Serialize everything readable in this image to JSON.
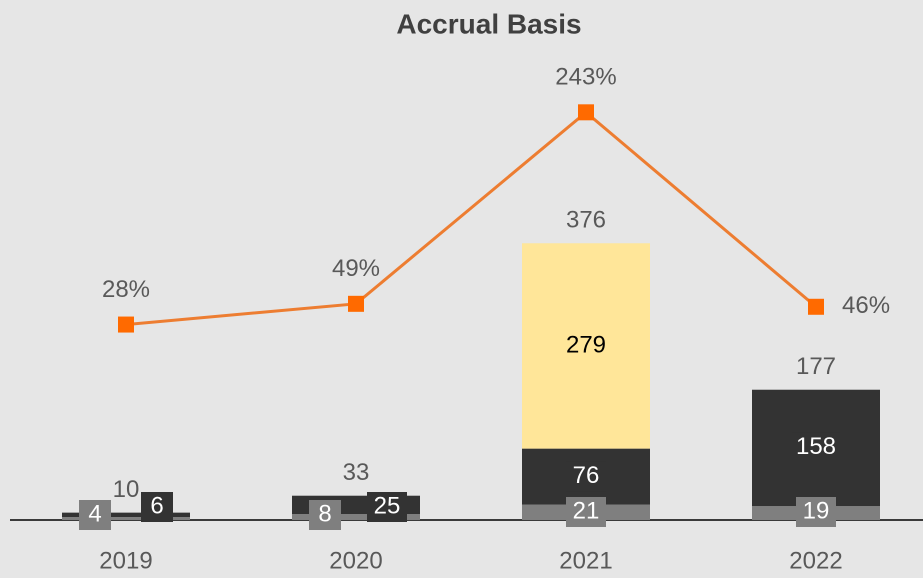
{
  "chart_data": {
    "type": "bar",
    "title": "Accrual Basis",
    "categories": [
      "2019",
      "2020",
      "2021",
      "2022"
    ],
    "series": [
      {
        "color": "#7f7f7f",
        "values": [
          4,
          8,
          21,
          19
        ]
      },
      {
        "color": "#333333",
        "values": [
          6,
          25,
          76,
          158
        ]
      },
      {
        "color": "#ffe699",
        "values": [
          null,
          null,
          279,
          null
        ]
      }
    ],
    "totals": [
      10,
      33,
      376,
      177
    ],
    "line": {
      "type": "line",
      "color": "#ed7d31",
      "marker_color": "#ff6a00",
      "axis": "y2",
      "values": [
        28,
        49,
        243,
        46
      ],
      "value_labels": [
        "28%",
        "49%",
        "243%",
        "46%"
      ]
    },
    "ylim": [
      0,
      625
    ],
    "y2lim": [
      -170,
      296
    ]
  }
}
